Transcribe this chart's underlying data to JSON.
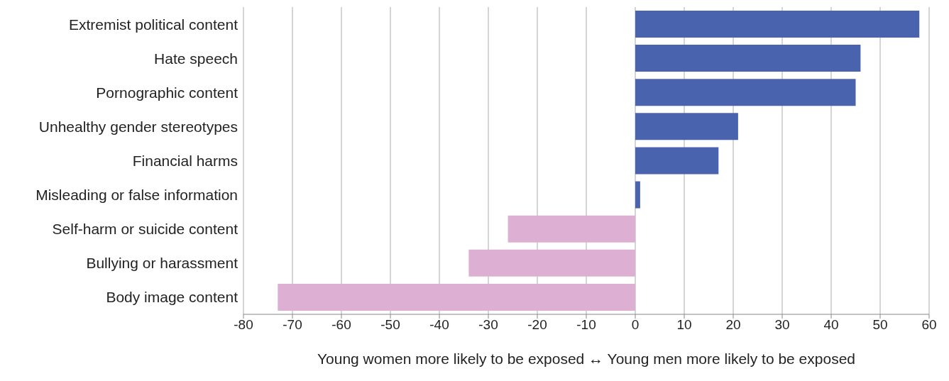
{
  "chart_data": {
    "type": "bar",
    "orientation": "horizontal",
    "categories": [
      "Extremist political content",
      "Hate speech",
      "Pornographic content",
      "Unhealthy gender stereotypes",
      "Financial harms",
      "Misleading or false information",
      "Self-harm or suicide content",
      "Bullying or harassment",
      "Body image content"
    ],
    "values": [
      58,
      46,
      45,
      21,
      17,
      1,
      -26,
      -34,
      -73
    ],
    "colors": [
      "#4a63ae",
      "#4a63ae",
      "#4a63ae",
      "#4a63ae",
      "#4a63ae",
      "#4a63ae",
      "#ddb0d3",
      "#ddb0d3",
      "#ddb0d3"
    ],
    "xlim": [
      -80,
      60
    ],
    "xticks": [
      -80,
      -70,
      -60,
      -50,
      -40,
      -30,
      -20,
      -10,
      0,
      10,
      20,
      30,
      40,
      50,
      60
    ],
    "xlabel": "Young women more likely to be exposed ↔ Young men more likely to be exposed",
    "grid": "x"
  }
}
